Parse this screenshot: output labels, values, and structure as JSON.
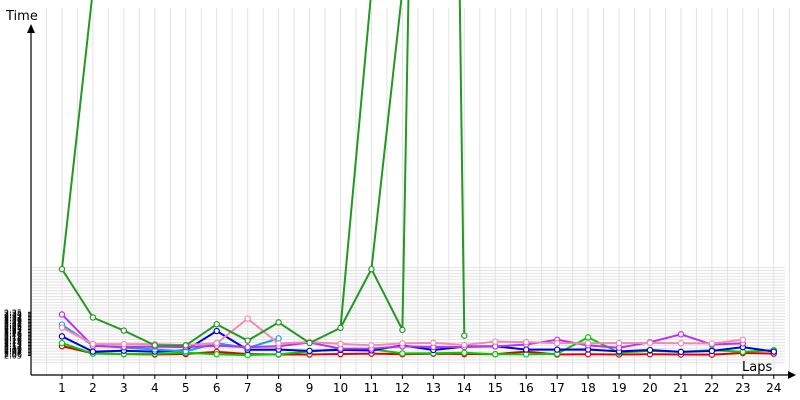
{
  "chart_data": {
    "type": "line",
    "xlabel": "Laps",
    "ylabel": "Time",
    "x": [
      1,
      2,
      3,
      4,
      5,
      6,
      7,
      8,
      9,
      10,
      11,
      12,
      13,
      14,
      15,
      16,
      17,
      18,
      19,
      20,
      21,
      22,
      23,
      24
    ],
    "xlim": [
      0,
      24.5
    ],
    "ylim_seconds": [
      120,
      185
    ],
    "ylim_minutes": [
      2.0,
      3.08
    ],
    "yticks": [
      "2:05",
      "2:06",
      "2:07",
      "2:08",
      "2:09",
      "2:10",
      "2:11",
      "2:12",
      "2:13",
      "2:14",
      "2:15",
      "2:16",
      "2:17",
      "2:18",
      "2:19",
      "2:20",
      "2:21",
      "2:22",
      "2:23",
      "2:24",
      "2:25",
      "2:26",
      "2:27",
      "2:28",
      "2:29",
      "2:30",
      "2:31",
      "2:32",
      "2:33",
      "2:34",
      "2:35"
    ],
    "grid": true,
    "legend": "none",
    "series": [
      {
        "color": "#e00000",
        "values": [
          "2:11.5",
          "2:06.5",
          "2:06.0",
          "2:05.7",
          "2:06.0",
          "2:07.5",
          "2:06.0",
          "2:05.7",
          "2:05.7",
          "2:06.0",
          "2:06.3",
          "2:05.9",
          "2:06.2",
          "2:06.0",
          "2:05.9",
          "2:07.7",
          "2:05.7",
          "2:05.9",
          "2:05.7",
          "2:05.9",
          "2:05.7",
          "2:05.6",
          "2:06.7",
          "2:06.3"
        ]
      },
      {
        "color": "#00cc00",
        "values": [
          "2:13.6",
          "2:06.3",
          "2:06.0",
          "2:06.2",
          "2:06.9",
          "2:05.9",
          "2:05.3",
          "2:05.9",
          "2:07.8",
          "2:09.4",
          "2:09.4",
          "2:06.5",
          "2:06.6",
          "2:06.9",
          "2:05.9",
          "2:05.8",
          "2:06.2",
          "2:17.6",
          "2:07.0",
          "2:08.2",
          "2:07.5",
          "2:08.7",
          "2:07.6",
          "2:08.7"
        ]
      },
      {
        "color": "#0000dd",
        "values": [
          "2:18.3",
          "2:07.7",
          "2:08.3",
          "2:07.7",
          "2:08.6",
          "2:22.0",
          "2:09.0",
          "2:09.1",
          "2:08.2",
          "2:08.9",
          "2:08.5",
          "2:12.0",
          "2:08.8",
          "2:11.2",
          "2:11.4",
          "2:09.1",
          "2:09.1",
          "2:09.2",
          "2:07.9",
          "2:08.8",
          "2:07.5",
          "2:08.1",
          "2:10.8",
          "2:07.7"
        ]
      },
      {
        "color": "#1aa0e8",
        "values": [
          "2:26.4",
          "2:12.0",
          "2:10.5",
          "2:09.2",
          "2:07.9",
          "2:13.6",
          "2:10.2",
          "2:16.9",
          null,
          null,
          null,
          null,
          null,
          null,
          null,
          null,
          null,
          null,
          null,
          null,
          null,
          null,
          null,
          null
        ]
      },
      {
        "color": "#bb33ee",
        "values": [
          "2:33.5",
          "2:11.6",
          "2:11.0",
          "2:11.2",
          "2:10.8",
          "2:11.8",
          "2:10.8",
          "2:11.4",
          "2:14.0",
          "2:09.8",
          "2:09.8",
          "2:11.3",
          "2:10.9",
          "2:10.9",
          "2:11.3",
          "2:12.6",
          "2:15.9",
          "2:12.0",
          "2:10.4",
          "2:14.2",
          "2:19.7",
          "2:12.6",
          "2:13.4",
          null
        ]
      },
      {
        "color": "#f08cb0",
        "values": [
          "2:24.4",
          "2:13.0",
          "2:12.9",
          "2:12.9",
          "2:12.3",
          "2:13.5",
          "2:30.6",
          "2:13.3",
          "2:14.4",
          "2:13.1",
          "2:12.0",
          "2:13.4",
          "2:13.8",
          "2:12.3",
          "2:14.6",
          "2:14.3",
          "2:13.6",
          "2:13.5",
          "2:13.6",
          "2:13.8",
          "2:13.5",
          "2:13.3",
          "2:15.9",
          null
        ]
      },
      {
        "color": "#229922",
        "values": [
          "3:05",
          "2:31.4",
          "2:22.3",
          "2:12.1",
          "2:12.0",
          "2:26.7",
          "2:15.3",
          "2:28.0",
          "2:13.7",
          "2:24.2",
          "3:05",
          "2:22.8",
          null,
          "2:18.8",
          null,
          null,
          null,
          null,
          null,
          null,
          null,
          null,
          null,
          null
        ],
        "offscale_segments": [
          [
            1,
            2
          ],
          [
            10,
            11
          ],
          [
            11,
            12
          ],
          [
            12,
            12.2
          ],
          [
            14,
            13.85
          ]
        ]
      }
    ]
  }
}
